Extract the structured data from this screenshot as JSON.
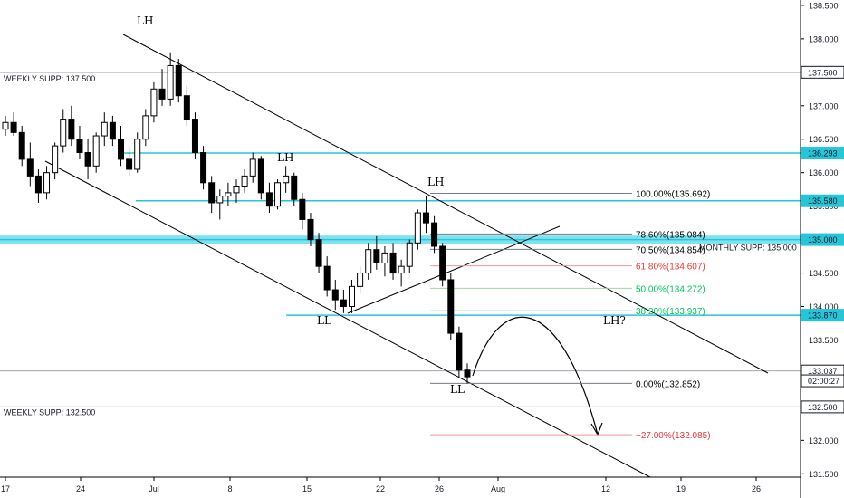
{
  "chart_data": {
    "type": "candlestick",
    "symbol_context": "price chart with fibonacci levels and descending channel",
    "y_axis": {
      "range": [
        131.45,
        138.58
      ],
      "ticks": [
        "138.500",
        "138.000",
        "137.500",
        "137.000",
        "136.500",
        "136.000",
        "135.500",
        "135.000",
        "134.500",
        "134.000",
        "133.500",
        "133.000",
        "132.500",
        "132.000",
        "131.500"
      ]
    },
    "x_axis": {
      "ticks": [
        "17",
        "24",
        "Jul",
        "8",
        "15",
        "22",
        "26",
        "Aug",
        "12",
        "19",
        "26"
      ]
    },
    "price_labels": [
      {
        "text": "137.500",
        "value": 137.5,
        "style": "dark"
      },
      {
        "text": "136.293",
        "value": 136.293,
        "style": "teal"
      },
      {
        "text": "135.580",
        "value": 135.58,
        "style": "teal"
      },
      {
        "text": "135.000",
        "value": 135.0,
        "style": "teal"
      },
      {
        "text": "133.870",
        "value": 133.87,
        "style": "teal"
      },
      {
        "text": "133.037",
        "value": 133.037,
        "style": "dark"
      },
      {
        "text": "02:00:27",
        "value": 132.89,
        "style": "dark"
      },
      {
        "text": "132.500",
        "value": 132.5,
        "style": "dark"
      }
    ],
    "horizontal_lines": [
      {
        "label": "WEEKLY SUPP: 137.500",
        "value": 137.5,
        "color": "#787b86"
      },
      {
        "label": "",
        "value": 136.293,
        "color": "#26c6da"
      },
      {
        "label": "",
        "value": 135.58,
        "color": "#26c6da"
      },
      {
        "label": "MONTHLY SUPP: 135.000",
        "value": 135.0,
        "color": "#26c6da"
      },
      {
        "label": "",
        "value": 133.87,
        "color": "#26c6da"
      },
      {
        "label": "WEEKLY SUPP: 132.500",
        "value": 132.5,
        "color": "#787b86"
      }
    ],
    "fib_levels": [
      {
        "label": "100.00%(135.692)",
        "value": 135.692,
        "color": "#000000"
      },
      {
        "label": "78.60%(135.084)",
        "value": 135.084,
        "color": "#000000"
      },
      {
        "label": "70.50%(134.854)",
        "value": 134.854,
        "color": "#000000"
      },
      {
        "label": "61.80%(134.607)",
        "value": 134.607,
        "color": "#e53935"
      },
      {
        "label": "50.00%(134.272)",
        "value": 134.272,
        "color": "#00c853"
      },
      {
        "label": "38.20%(133.937)",
        "value": 133.937,
        "color": "#00c853"
      },
      {
        "label": "0.00%(132.852)",
        "value": 132.852,
        "color": "#000000"
      },
      {
        "label": "−27.00%(132.085)",
        "value": 132.085,
        "color": "#e53935"
      }
    ],
    "annotations": [
      "LH",
      "LH",
      "LH",
      "LL",
      "LL",
      "LH?"
    ],
    "candles": [
      [
        136.65,
        136.85,
        136.55,
        136.75
      ],
      [
        136.75,
        136.9,
        136.55,
        136.6
      ],
      [
        136.6,
        136.7,
        136.1,
        136.2
      ],
      [
        136.2,
        136.45,
        135.8,
        135.95
      ],
      [
        135.95,
        136.05,
        135.55,
        135.7
      ],
      [
        135.7,
        136.1,
        135.6,
        136.0
      ],
      [
        136.0,
        136.45,
        135.9,
        136.4
      ],
      [
        136.4,
        136.95,
        136.3,
        136.8
      ],
      [
        136.8,
        137.0,
        136.4,
        136.5
      ],
      [
        136.5,
        136.7,
        136.2,
        136.3
      ],
      [
        136.3,
        136.5,
        135.9,
        136.1
      ],
      [
        136.1,
        136.6,
        136.0,
        136.55
      ],
      [
        136.55,
        136.9,
        136.4,
        136.75
      ],
      [
        136.75,
        136.85,
        136.4,
        136.5
      ],
      [
        136.5,
        136.7,
        136.1,
        136.2
      ],
      [
        136.2,
        136.4,
        135.95,
        136.05
      ],
      [
        136.05,
        136.6,
        136.0,
        136.5
      ],
      [
        136.5,
        136.95,
        136.4,
        136.85
      ],
      [
        136.85,
        137.35,
        136.75,
        137.25
      ],
      [
        137.25,
        137.55,
        137.0,
        137.1
      ],
      [
        137.1,
        137.8,
        137.0,
        137.6
      ],
      [
        137.6,
        137.7,
        137.05,
        137.15
      ],
      [
        137.15,
        137.3,
        136.7,
        136.8
      ],
      [
        136.8,
        136.9,
        136.2,
        136.3
      ],
      [
        136.3,
        136.4,
        135.75,
        135.85
      ],
      [
        135.85,
        135.95,
        135.4,
        135.55
      ],
      [
        135.55,
        135.75,
        135.3,
        135.65
      ],
      [
        135.65,
        135.85,
        135.5,
        135.7
      ],
      [
        135.7,
        135.9,
        135.55,
        135.8
      ],
      [
        135.8,
        136.05,
        135.7,
        135.95
      ],
      [
        135.95,
        136.3,
        135.85,
        136.2
      ],
      [
        136.2,
        136.25,
        135.6,
        135.7
      ],
      [
        135.7,
        135.85,
        135.4,
        135.5
      ],
      [
        135.5,
        135.9,
        135.45,
        135.85
      ],
      [
        135.85,
        136.1,
        135.7,
        135.95
      ],
      [
        135.95,
        136.0,
        135.5,
        135.6
      ],
      [
        135.6,
        135.7,
        135.15,
        135.3
      ],
      [
        135.3,
        135.4,
        134.9,
        135.0
      ],
      [
        135.0,
        135.1,
        134.5,
        134.6
      ],
      [
        134.6,
        134.75,
        134.15,
        134.25
      ],
      [
        134.25,
        134.4,
        133.95,
        134.1
      ],
      [
        134.1,
        134.25,
        133.9,
        134.0
      ],
      [
        134.0,
        134.4,
        133.9,
        134.3
      ],
      [
        134.3,
        134.6,
        134.2,
        134.5
      ],
      [
        134.5,
        134.95,
        134.4,
        134.85
      ],
      [
        134.85,
        135.05,
        134.55,
        134.65
      ],
      [
        134.65,
        134.9,
        134.45,
        134.8
      ],
      [
        134.8,
        134.95,
        134.4,
        134.5
      ],
      [
        134.5,
        134.7,
        134.3,
        134.6
      ],
      [
        134.6,
        135.0,
        134.5,
        134.95
      ],
      [
        134.95,
        135.45,
        134.85,
        135.4
      ],
      [
        135.4,
        135.65,
        135.1,
        135.25
      ],
      [
        135.25,
        135.35,
        134.8,
        134.9
      ],
      [
        134.9,
        134.95,
        134.3,
        134.4
      ],
      [
        134.4,
        134.5,
        133.5,
        133.6
      ],
      [
        133.6,
        133.7,
        132.95,
        133.05
      ],
      [
        133.05,
        133.15,
        132.85,
        132.95
      ]
    ]
  },
  "colors": {
    "teal_line": "#26c6da",
    "teal_band": "#7fe3ef",
    "gray_line": "#787b86",
    "axis_bg": "#ffffff",
    "candle": "#000000"
  }
}
